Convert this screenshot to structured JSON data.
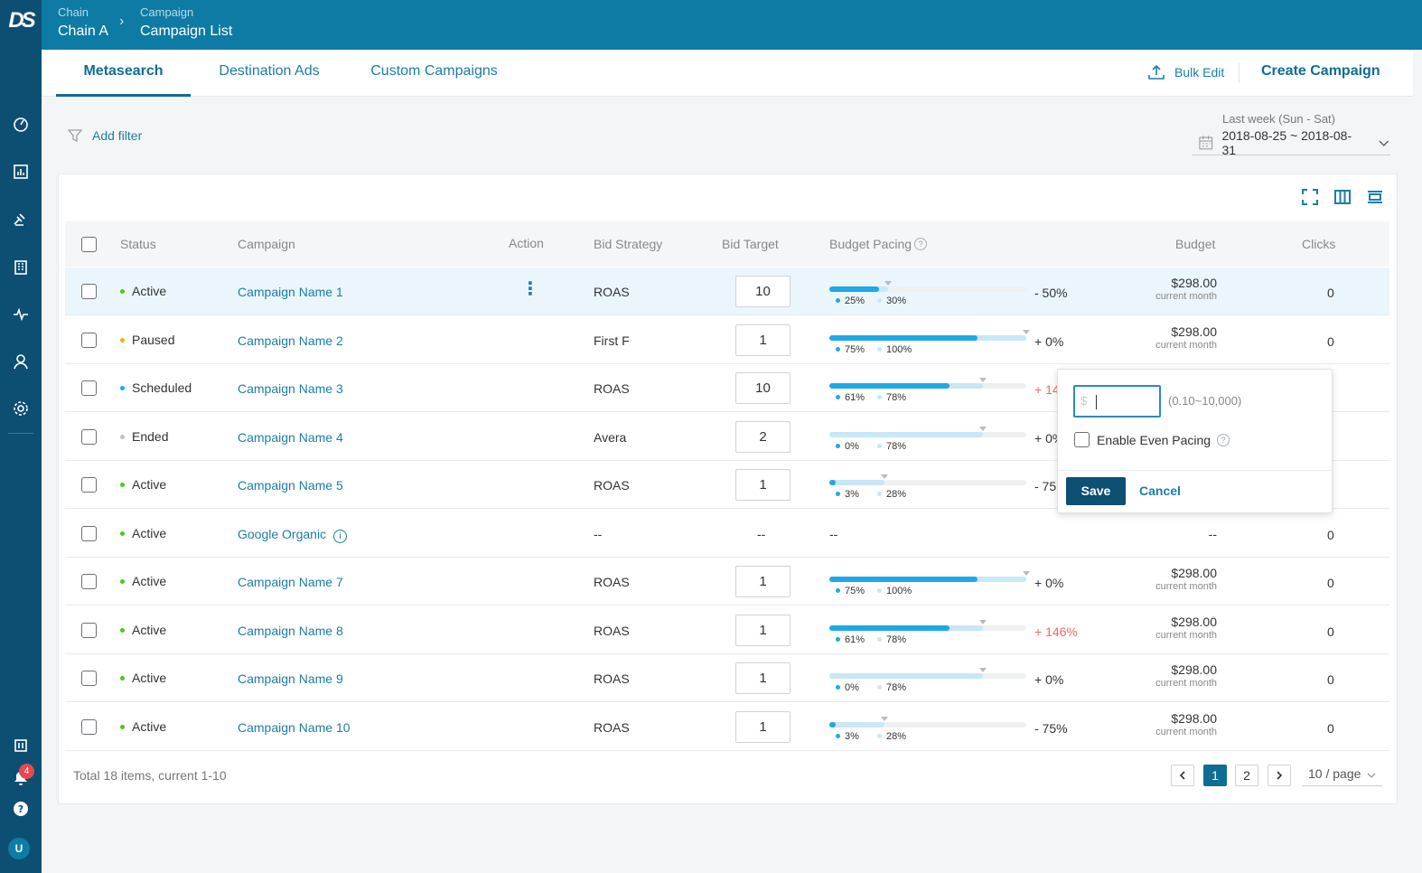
{
  "app": {
    "logo": "DS"
  },
  "breadcrumb": {
    "level1_label": "Chain",
    "level1_value": "Chain A",
    "level2_label": "Campaign",
    "level2_value": "Campaign List"
  },
  "tabs": [
    {
      "label": "Metasearch",
      "active": true
    },
    {
      "label": "Destination Ads",
      "active": false
    },
    {
      "label": "Custom Campaigns",
      "active": false
    }
  ],
  "actions": {
    "bulk_edit": "Bulk Edit",
    "create_campaign": "Create Campaign"
  },
  "filter": {
    "add_filter": "Add filter"
  },
  "date": {
    "label": "Last week (Sun - Sat)",
    "range": "2018-08-25 ~ 2018-08-31"
  },
  "columns": {
    "status": "Status",
    "campaign": "Campaign",
    "action": "Action",
    "bid_strategy": "Bid Strategy",
    "bid_target": "Bid Target",
    "budget_pacing": "Budget Pacing",
    "budget": "Budget",
    "clicks": "Clicks"
  },
  "status_colors": {
    "Active": "#52c41a",
    "Paused": "#faad14",
    "Scheduled": "#1fa8e8",
    "Ended": "#bfbfbf"
  },
  "rows": [
    {
      "status": "Active",
      "campaign": "Campaign Name 1",
      "strategy": "ROAS",
      "bid": "10",
      "actual_pct": 25,
      "target_pct": 30,
      "actual": "25%",
      "target": "30%",
      "diff": "- 50%",
      "diff_red": false,
      "budget": "$298.00",
      "budget_sub": "current month",
      "clicks": "0",
      "highlight": true,
      "menu": true
    },
    {
      "status": "Paused",
      "campaign": "Campaign Name 2",
      "strategy": "First F",
      "bid": "1",
      "actual_pct": 75,
      "target_pct": 100,
      "actual": "75%",
      "target": "100%",
      "diff": "+ 0%",
      "diff_red": false,
      "budget": "$298.00",
      "budget_sub": "current month",
      "clicks": "0"
    },
    {
      "status": "Scheduled",
      "campaign": "Campaign Name 3",
      "strategy": "ROAS",
      "bid": "10",
      "actual_pct": 61,
      "target_pct": 78,
      "actual": "61%",
      "target": "78%",
      "diff": "+ 14",
      "diff_red": true,
      "budget": "",
      "budget_sub": "",
      "clicks": ""
    },
    {
      "status": "Ended",
      "campaign": "Campaign Name 4",
      "strategy": "Avera",
      "bid": "2",
      "actual_pct": 0,
      "target_pct": 78,
      "actual": "0%",
      "target": "78%",
      "diff": "+ 0%",
      "diff_red": false,
      "budget": "",
      "budget_sub": "",
      "clicks": ""
    },
    {
      "status": "Active",
      "campaign": "Campaign Name 5",
      "strategy": "ROAS",
      "bid": "1",
      "actual_pct": 3,
      "target_pct": 28,
      "actual": "3%",
      "target": "28%",
      "diff": "- 75",
      "diff_red": false,
      "budget": "",
      "budget_sub": "",
      "clicks": ""
    },
    {
      "status": "Active",
      "campaign": "Google Organic",
      "strategy": "--",
      "bid": "--",
      "pacing": "--",
      "budget": "--",
      "budget_sub": "",
      "clicks": "0",
      "organic": true
    },
    {
      "status": "Active",
      "campaign": "Campaign Name 7",
      "strategy": "ROAS",
      "bid": "1",
      "actual_pct": 75,
      "target_pct": 100,
      "actual": "75%",
      "target": "100%",
      "diff": "+ 0%",
      "diff_red": false,
      "budget": "$298.00",
      "budget_sub": "current month",
      "clicks": "0"
    },
    {
      "status": "Active",
      "campaign": "Campaign Name 8",
      "strategy": "ROAS",
      "bid": "1",
      "actual_pct": 61,
      "target_pct": 78,
      "actual": "61%",
      "target": "78%",
      "diff": "+ 146%",
      "diff_red": true,
      "budget": "$298.00",
      "budget_sub": "current month",
      "clicks": "0"
    },
    {
      "status": "Active",
      "campaign": "Campaign Name 9",
      "strategy": "ROAS",
      "bid": "1",
      "actual_pct": 0,
      "target_pct": 78,
      "actual": "0%",
      "target": "78%",
      "diff": "+ 0%",
      "diff_red": false,
      "budget": "$298.00",
      "budget_sub": "current month",
      "clicks": "0"
    },
    {
      "status": "Active",
      "campaign": "Campaign Name 10",
      "strategy": "ROAS",
      "bid": "1",
      "actual_pct": 3,
      "target_pct": 28,
      "actual": "3%",
      "target": "28%",
      "diff": "- 75%",
      "diff_red": false,
      "budget": "$298.00",
      "budget_sub": "current month",
      "clicks": "0"
    }
  ],
  "footer": {
    "total": "Total 18 items, current 1-10",
    "pages": [
      "1",
      "2"
    ],
    "current_page": "1",
    "per_page": "10 / page"
  },
  "popover": {
    "currency": "$",
    "range": "(0.10~10,000)",
    "checkbox_label": "Enable Even Pacing",
    "save": "Save",
    "cancel": "Cancel"
  },
  "notifications": {
    "count": "4"
  },
  "user": {
    "initial": "U"
  }
}
